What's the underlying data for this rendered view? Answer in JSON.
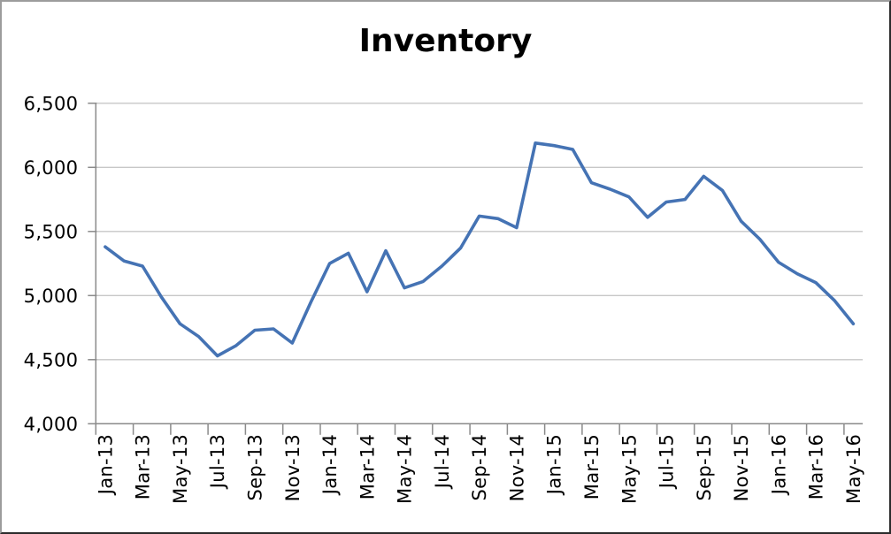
{
  "colors": {
    "line": "#4573B4",
    "gridline": "#C7C7C7",
    "axis": "#8A8A8A",
    "text": "#000000",
    "background": "#FFFFFF",
    "frame_top_left": "#9C9C9C",
    "frame_bottom_right": "#2B2B2B"
  },
  "chart_data": {
    "type": "line",
    "title": "Inventory",
    "xlabel": "",
    "ylabel": "",
    "grid": "horizontal",
    "legend": "none",
    "x_label_rotation": -90,
    "x_tick_every": 2,
    "ylim": [
      4000,
      6500
    ],
    "y_ticks": [
      4000,
      4500,
      5000,
      5500,
      6000,
      6500
    ],
    "y_tick_labels": [
      "4,000",
      "4,500",
      "5,000",
      "5,500",
      "6,000",
      "6,500"
    ],
    "x_axis_tick_labels_shown": [
      "Jan-13",
      "Mar-13",
      "May-13",
      "Jul-13",
      "Sep-13",
      "Nov-13",
      "Jan-14",
      "Mar-14",
      "May-14",
      "Jul-14",
      "Sep-14",
      "Nov-14",
      "Jan-15",
      "Mar-15",
      "May-15",
      "Jul-15",
      "Sep-15",
      "Nov-15",
      "Jan-16",
      "Mar-16",
      "May-16"
    ],
    "categories": [
      "Jan-13",
      "Feb-13",
      "Mar-13",
      "Apr-13",
      "May-13",
      "Jun-13",
      "Jul-13",
      "Aug-13",
      "Sep-13",
      "Oct-13",
      "Nov-13",
      "Dec-13",
      "Jan-14",
      "Feb-14",
      "Mar-14",
      "Apr-14",
      "May-14",
      "Jun-14",
      "Jul-14",
      "Aug-14",
      "Sep-14",
      "Oct-14",
      "Nov-14",
      "Dec-14",
      "Jan-15",
      "Feb-15",
      "Mar-15",
      "Apr-15",
      "May-15",
      "Jun-15",
      "Jul-15",
      "Aug-15",
      "Sep-15",
      "Oct-15",
      "Nov-15",
      "Dec-15",
      "Jan-16",
      "Feb-16",
      "Mar-16",
      "Apr-16",
      "May-16"
    ],
    "series": [
      {
        "name": "Inventory",
        "values": [
          5380,
          5270,
          5230,
          4990,
          4780,
          4680,
          4530,
          4610,
          4730,
          4740,
          4630,
          4950,
          5250,
          5330,
          5030,
          5350,
          5060,
          5110,
          5230,
          5370,
          5620,
          5600,
          5530,
          6190,
          6170,
          6140,
          5880,
          5830,
          5770,
          5610,
          5730,
          5750,
          5930,
          5820,
          5580,
          5440,
          5260,
          5170,
          5100,
          4960,
          4780
        ]
      }
    ]
  }
}
